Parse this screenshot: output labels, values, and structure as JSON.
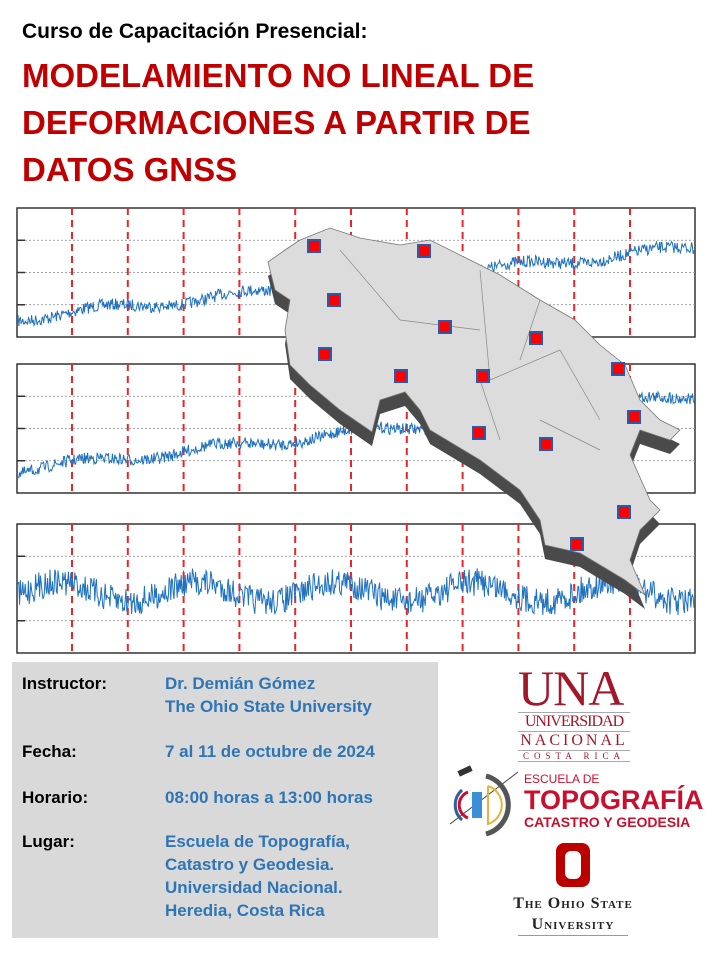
{
  "header": {
    "subtitle": "Curso de Capacitación Presencial:",
    "title_lines": [
      "MODELAMIENTO NO LINEAL DE",
      "DEFORMACIONES A PARTIR DE",
      "DATOS GNSS"
    ]
  },
  "colors": {
    "title": "#c00000",
    "value": "#2e75b6",
    "series": "#1f72c0",
    "breaks": "#e8262a",
    "info_bg": "#d9d9d9"
  },
  "info": {
    "instructor_label": "Instructor:",
    "instructor_name": "Dr. Demián Gómez",
    "instructor_org": "The Ohio State University",
    "date_label": "Fecha:",
    "date_value": "7 al 11 de octubre de 2024",
    "time_label": "Horario:",
    "time_value": "08:00 horas a 13:00 horas",
    "place_label": "Lugar:",
    "place_lines": [
      "Escuela de Topografía,",
      "Catastro y Geodesia.",
      "Universidad Nacional.",
      "Heredia, Costa Rica"
    ]
  },
  "logos": {
    "una": {
      "mark": "UNA",
      "line1": "UNIVERSIDAD",
      "line2": "NACIONAL",
      "line3": "COSTA RICA"
    },
    "topografia": {
      "line1": "ESCUELA DE",
      "line2": "TOPOGRAFÍA",
      "line3": "CATASTRO Y GEODESIA"
    },
    "osu": {
      "mark": "O",
      "line1": "The Ohio State",
      "line2": "University"
    }
  },
  "figure": {
    "icon": "gnss-time-series-map",
    "station_icon": "red-square-marker"
  }
}
